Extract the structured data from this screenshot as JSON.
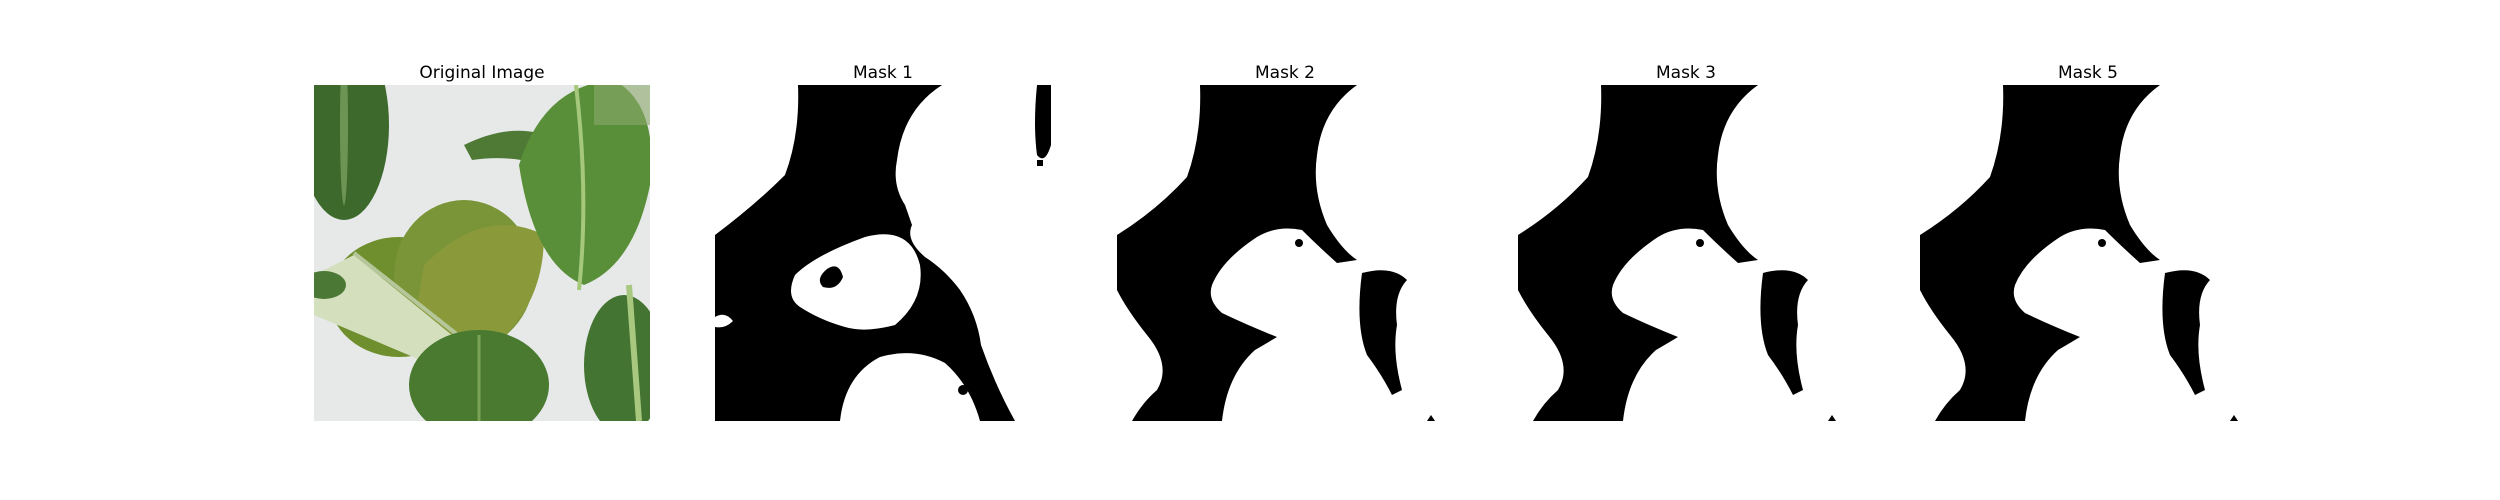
{
  "figure": {
    "panels": [
      {
        "title": "Original Image"
      },
      {
        "title": "Mask 1"
      },
      {
        "title": "Mask 2"
      },
      {
        "title": "Mask 3"
      },
      {
        "title": "Mask 5"
      }
    ]
  },
  "colors": {
    "background": "#ffffff",
    "mask_foreground": "#000000",
    "mask_background": "#ffffff",
    "leaf_dark": "#3f6b2e",
    "leaf_mid": "#5f8a3c",
    "leaf_light": "#8fae5a",
    "stem": "#cfdcb3",
    "backdrop": "#e6e9e8"
  }
}
